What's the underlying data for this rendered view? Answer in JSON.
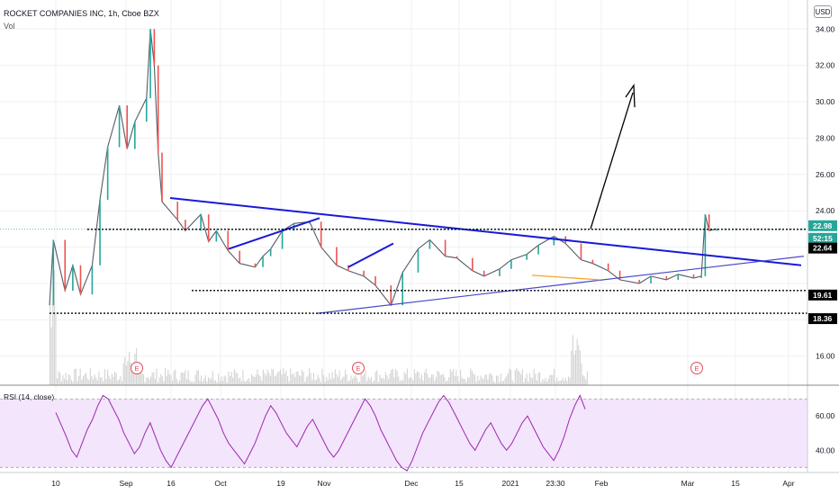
{
  "header": {
    "title": "ROCKET COMPANIES INC, 1h, Cboe BZX",
    "volume_label": "Vol",
    "currency": "USD",
    "rsi_label": "RSI (14, close)"
  },
  "colors": {
    "price": "#26a69a",
    "rsi_line": "#9c27b0",
    "rsi_fill": "#f3e5fb",
    "trend": "#1a1ad6",
    "support": "#4848c8",
    "arrow": "#000000",
    "earnings": "#e04b5b",
    "orange_line": "#f5a623",
    "volume": "#d3d3d3"
  },
  "chart_data": {
    "type": "line",
    "title": "ROCKET COMPANIES INC, 1h, Cboe BZX",
    "symbol": "ROCKET COMPANIES INC",
    "interval": "1h",
    "exchange": "Cboe BZX",
    "currency": "USD",
    "x_tick_labels": [
      "10",
      "Sep",
      "16",
      "Oct",
      "19",
      "Nov",
      "Dec",
      "15",
      "2021",
      "23:30",
      "Feb",
      "Mar",
      "15",
      "Apr"
    ],
    "y_tick_labels": [
      "34.00",
      "32.00",
      "30.00",
      "28.00",
      "26.00",
      "24.00",
      "16.00"
    ],
    "ylim": [
      14.4,
      35.6
    ],
    "series": [
      {
        "name": "",
        "points": [
          [
            "2020-08-06",
            18.8
          ],
          [
            "2020-08-07",
            22.4
          ],
          [
            "2020-08-10",
            19.6
          ],
          [
            "2020-08-12",
            21.0
          ],
          [
            "2020-08-14",
            19.4
          ],
          [
            "2020-08-17",
            21.0
          ],
          [
            "2020-08-19",
            24.6
          ],
          [
            "2020-08-21",
            27.5
          ],
          [
            "2020-08-24",
            29.8
          ],
          [
            "2020-08-26",
            27.4
          ],
          [
            "2020-08-28",
            28.9
          ],
          [
            "2020-08-31",
            30.2
          ],
          [
            "2020-09-01",
            34.0
          ],
          [
            "2020-09-02",
            32.0
          ],
          [
            "2020-09-03",
            27.2
          ],
          [
            "2020-09-04",
            24.5
          ],
          [
            "2020-09-08",
            23.5
          ],
          [
            "2020-09-10",
            22.9
          ],
          [
            "2020-09-14",
            23.8
          ],
          [
            "2020-09-16",
            22.3
          ],
          [
            "2020-09-18",
            22.9
          ],
          [
            "2020-09-21",
            21.8
          ],
          [
            "2020-09-24",
            21.1
          ],
          [
            "2020-09-28",
            20.9
          ],
          [
            "2020-09-30",
            21.5
          ],
          [
            "2020-10-02",
            21.9
          ],
          [
            "2020-10-05",
            22.9
          ],
          [
            "2020-10-08",
            23.3
          ],
          [
            "2020-10-12",
            23.4
          ],
          [
            "2020-10-15",
            22.0
          ],
          [
            "2020-10-19",
            21.0
          ],
          [
            "2020-10-22",
            20.7
          ],
          [
            "2020-10-26",
            20.4
          ],
          [
            "2020-10-29",
            19.9
          ],
          [
            "2020-11-02",
            18.8
          ],
          [
            "2020-11-05",
            20.6
          ],
          [
            "2020-11-09",
            21.9
          ],
          [
            "2020-11-12",
            22.4
          ],
          [
            "2020-11-16",
            21.5
          ],
          [
            "2020-11-19",
            21.4
          ],
          [
            "2020-11-23",
            20.7
          ],
          [
            "2020-11-26",
            20.4
          ],
          [
            "2020-11-30",
            20.8
          ],
          [
            "2020-12-03",
            21.3
          ],
          [
            "2020-12-07",
            21.6
          ],
          [
            "2020-12-10",
            22.1
          ],
          [
            "2020-12-14",
            22.6
          ],
          [
            "2020-12-17",
            22.2
          ],
          [
            "2020-12-21",
            21.3
          ],
          [
            "2020-12-24",
            21.1
          ],
          [
            "2020-12-28",
            20.7
          ],
          [
            "2020-12-31",
            20.2
          ],
          [
            "2021-01-05",
            20.0
          ],
          [
            "2021-01-08",
            20.4
          ],
          [
            "2021-01-12",
            20.2
          ],
          [
            "2021-01-15",
            20.5
          ],
          [
            "2021-01-19",
            20.3
          ],
          [
            "2021-01-21",
            20.4
          ],
          [
            "2021-01-22",
            23.8
          ],
          [
            "2021-01-23",
            22.9
          ],
          [
            "2021-01-25",
            23.0
          ]
        ]
      }
    ],
    "price_labels": [
      {
        "value": "22.98",
        "color": "#26a69a"
      },
      {
        "value": "52:15",
        "color": "#26a69a"
      },
      {
        "value": "22.64",
        "color": "#000000"
      },
      {
        "value": "19.61",
        "color": "#000000"
      },
      {
        "value": "18.36",
        "color": "#000000"
      }
    ],
    "rsi": {
      "name": "RSI (14, close)",
      "ylim": [
        27,
        78
      ],
      "bands": [
        30,
        70
      ],
      "y_tick_labels": [
        "60.00",
        "40.00"
      ],
      "values": [
        62,
        55,
        48,
        40,
        36,
        44,
        52,
        58,
        66,
        72,
        70,
        64,
        58,
        50,
        44,
        38,
        42,
        50,
        56,
        48,
        40,
        34,
        30,
        36,
        42,
        48,
        54,
        60,
        66,
        70,
        64,
        58,
        50,
        44,
        40,
        36,
        32,
        38,
        44,
        52,
        60,
        66,
        62,
        56,
        50,
        46,
        42,
        48,
        54,
        58,
        52,
        46,
        40,
        36,
        40,
        46,
        52,
        58,
        64,
        70,
        66,
        60,
        52,
        46,
        40,
        34,
        30,
        28,
        34,
        42,
        50,
        56,
        62,
        68,
        72,
        68,
        62,
        56,
        50,
        44,
        40,
        46,
        52,
        56,
        50,
        44,
        40,
        44,
        50,
        56,
        60,
        54,
        48,
        42,
        38,
        34,
        40,
        48,
        58,
        66,
        72,
        64
      ]
    },
    "earnings_markers": [
      "E",
      "E",
      "E"
    ],
    "annotations": [
      "descending trendline",
      "rising support trendline",
      "horizontal support lines",
      "breakout arrow"
    ]
  }
}
